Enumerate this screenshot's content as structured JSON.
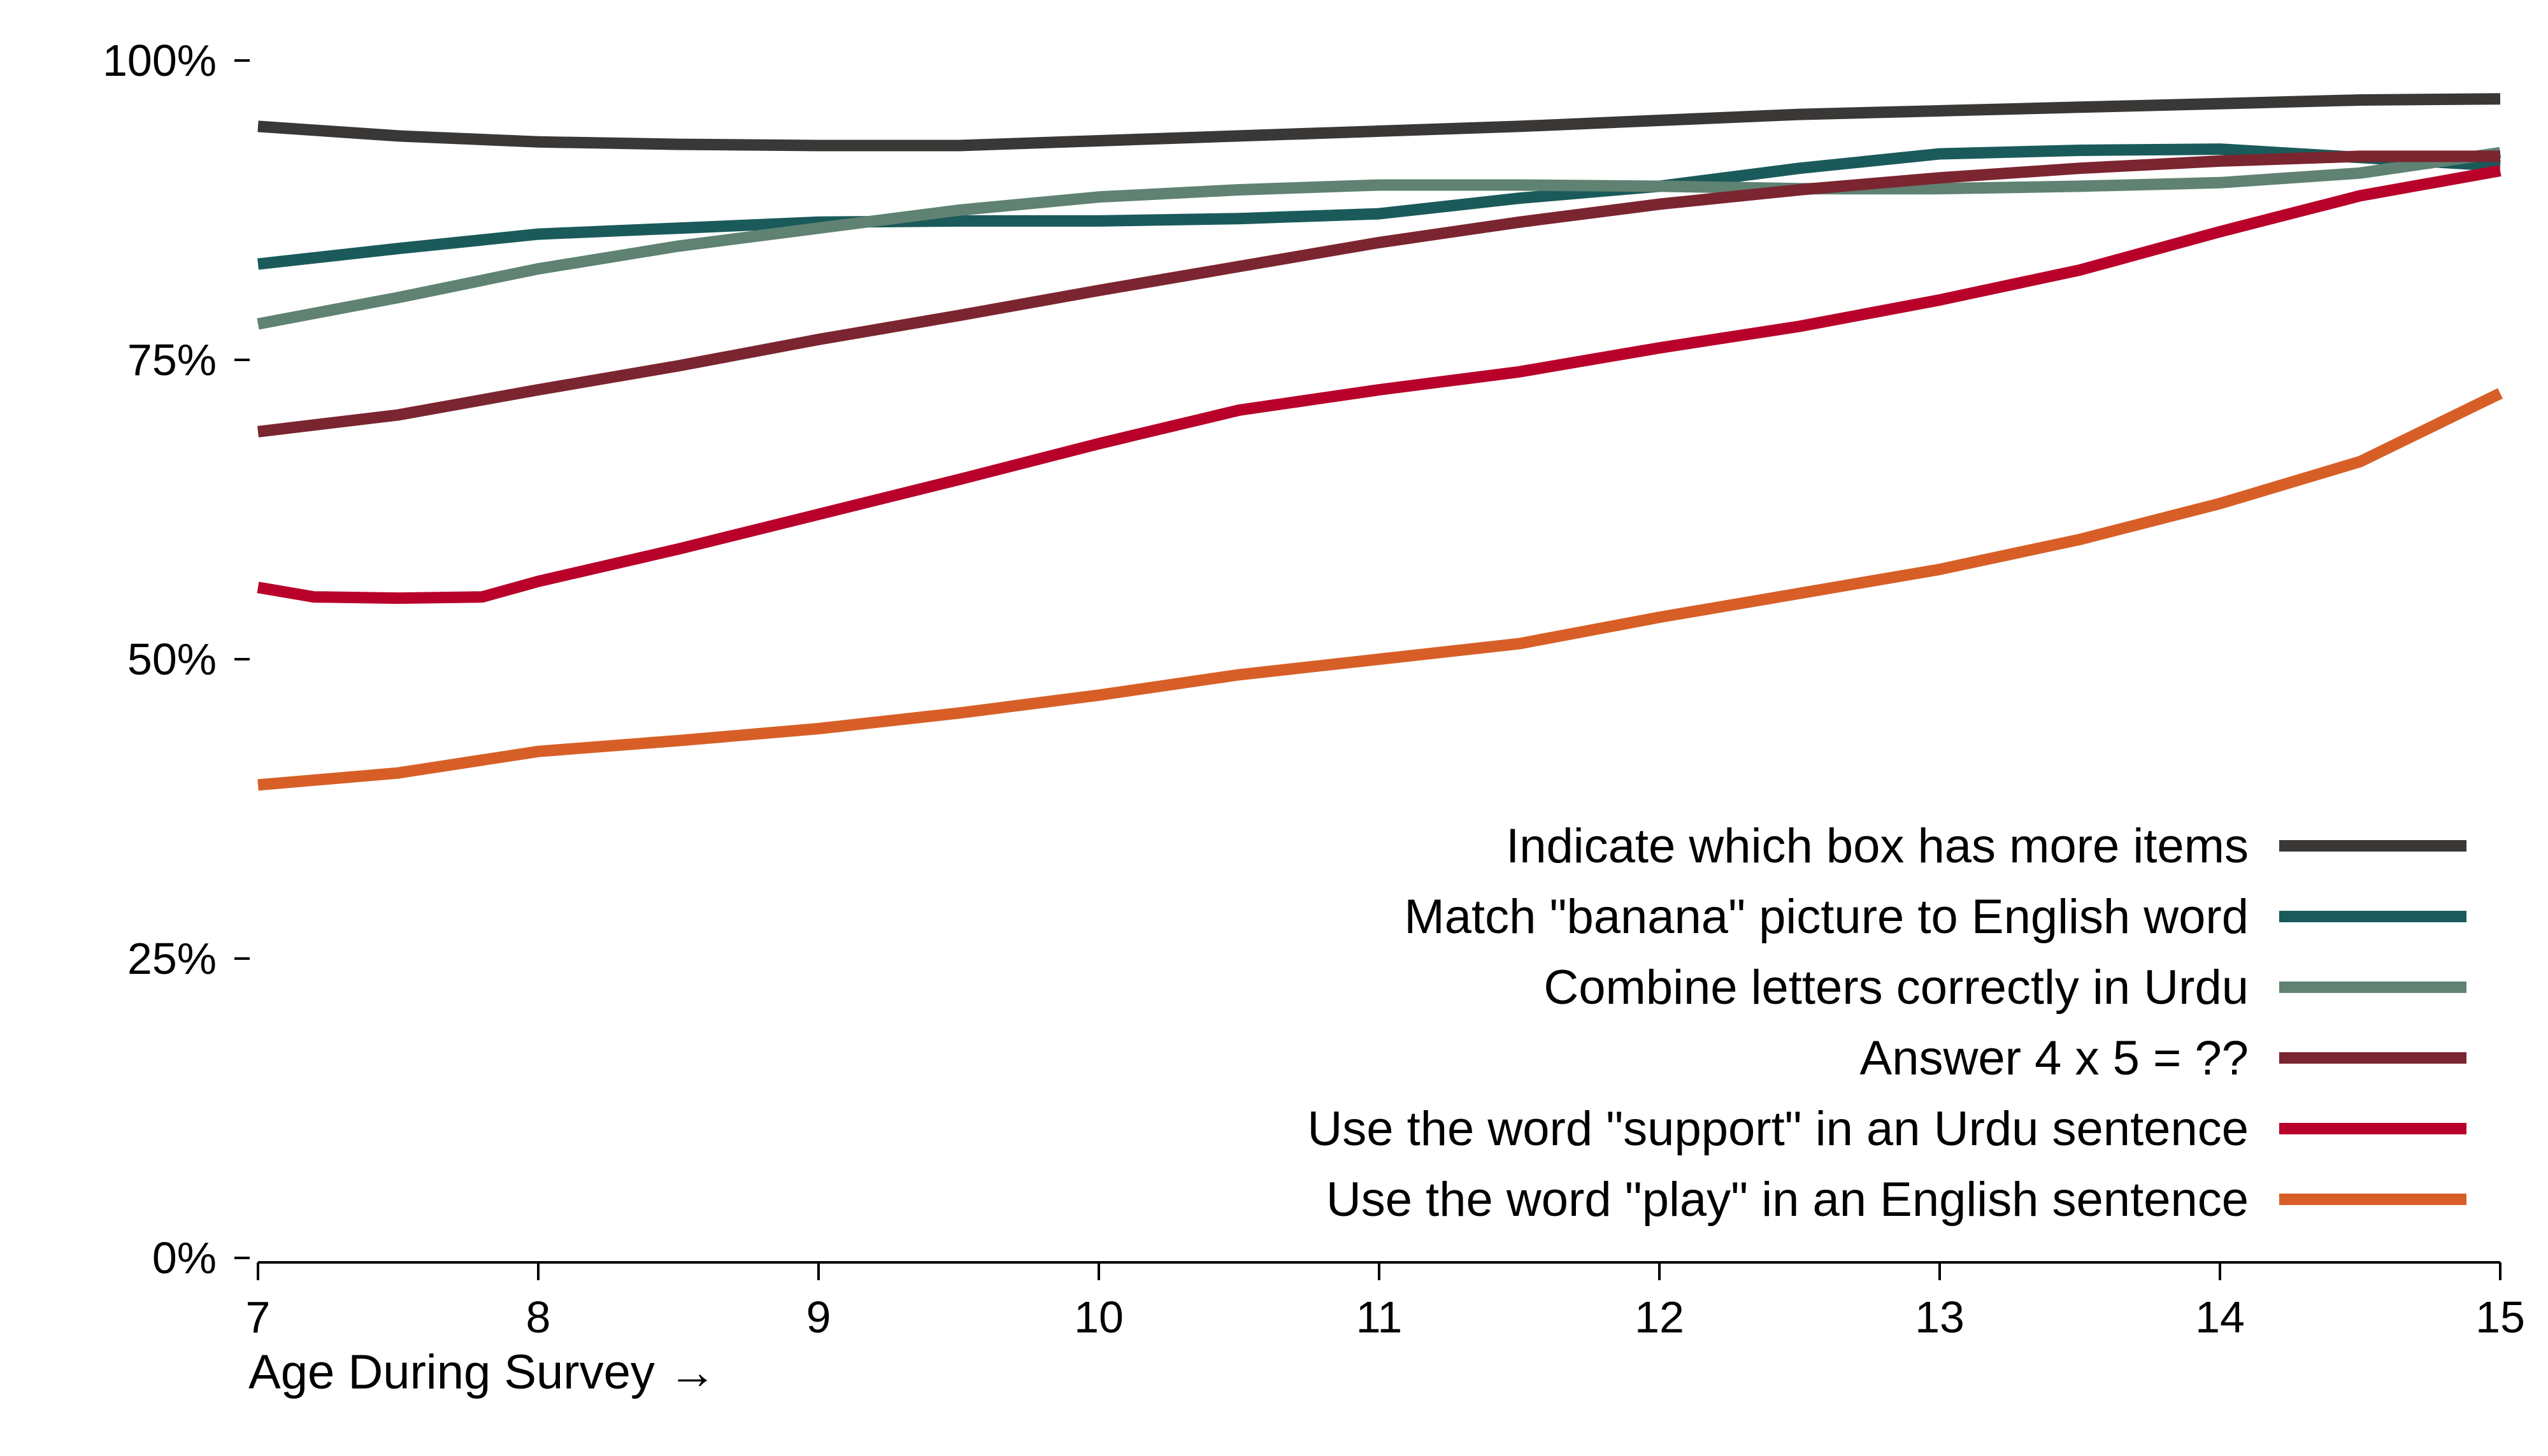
{
  "chart_data": {
    "type": "line",
    "title": "",
    "xlabel": "Age During Survey →",
    "ylabel": "",
    "xlim": [
      7,
      15
    ],
    "ylim": [
      0,
      1
    ],
    "x_ticks": [
      "7",
      "8",
      "9",
      "10",
      "11",
      "12",
      "13",
      "14",
      "15"
    ],
    "y_ticks": [
      "0%",
      "25%",
      "50%",
      "75%",
      "100%"
    ],
    "legend_position": "bottom-right",
    "grid": false,
    "series": [
      {
        "name": "Indicate which box has more items",
        "color": "#3a3836",
        "x": [
          7,
          7.5,
          8,
          8.5,
          9,
          9.5,
          10,
          10.5,
          11,
          11.5,
          12,
          12.5,
          13,
          13.5,
          14,
          14.5,
          15
        ],
        "y": [
          0.945,
          0.937,
          0.932,
          0.93,
          0.929,
          0.929,
          0.933,
          0.937,
          0.941,
          0.945,
          0.95,
          0.955,
          0.958,
          0.961,
          0.964,
          0.967,
          0.968
        ]
      },
      {
        "name": "Match \"banana\" picture to English word",
        "color": "#1b5a5a",
        "x": [
          7,
          7.5,
          8,
          8.5,
          9,
          9.5,
          10,
          10.5,
          11,
          11.5,
          12,
          12.5,
          13,
          13.5,
          14,
          14.5,
          15
        ],
        "y": [
          0.83,
          0.843,
          0.855,
          0.86,
          0.865,
          0.866,
          0.866,
          0.868,
          0.872,
          0.885,
          0.895,
          0.91,
          0.922,
          0.925,
          0.926,
          0.919,
          0.912
        ]
      },
      {
        "name": "Combine letters correctly in Urdu",
        "color": "#5f8272",
        "x": [
          7,
          7.5,
          8,
          8.5,
          9,
          9.5,
          10,
          10.5,
          11,
          11.5,
          12,
          12.5,
          13,
          13.5,
          14,
          14.5,
          15
        ],
        "y": [
          0.78,
          0.802,
          0.826,
          0.845,
          0.86,
          0.875,
          0.886,
          0.892,
          0.896,
          0.896,
          0.895,
          0.893,
          0.893,
          0.895,
          0.898,
          0.906,
          0.923
        ]
      },
      {
        "name": "Answer 4 x 5 = ??",
        "color": "#7b2530",
        "x": [
          7,
          7.5,
          8,
          8.5,
          9,
          9.5,
          10,
          10.5,
          11,
          11.5,
          12,
          12.5,
          13,
          13.5,
          14,
          14.5,
          15
        ],
        "y": [
          0.69,
          0.704,
          0.725,
          0.745,
          0.767,
          0.787,
          0.808,
          0.828,
          0.848,
          0.865,
          0.88,
          0.892,
          0.902,
          0.91,
          0.916,
          0.92,
          0.92
        ]
      },
      {
        "name": "Use the word \"support\" in an Urdu sentence",
        "color": "#b8002a",
        "x": [
          7,
          7.2,
          7.5,
          7.8,
          8,
          8.5,
          9,
          9.5,
          10,
          10.5,
          11,
          11.5,
          12,
          12.5,
          13,
          13.5,
          14,
          14.5,
          15
        ],
        "y": [
          0.56,
          0.552,
          0.551,
          0.552,
          0.565,
          0.592,
          0.621,
          0.65,
          0.68,
          0.708,
          0.725,
          0.74,
          0.76,
          0.778,
          0.8,
          0.825,
          0.857,
          0.887,
          0.908
        ]
      },
      {
        "name": "Use the word \"play\" in an English sentence",
        "color": "#d75f27",
        "x": [
          7,
          7.5,
          8,
          8.5,
          9,
          9.5,
          10,
          10.5,
          11,
          11.5,
          12,
          12.5,
          13,
          13.5,
          14,
          14.5,
          15
        ],
        "y": [
          0.395,
          0.405,
          0.423,
          0.432,
          0.442,
          0.455,
          0.47,
          0.487,
          0.5,
          0.513,
          0.535,
          0.555,
          0.575,
          0.6,
          0.63,
          0.665,
          0.722
        ]
      }
    ]
  }
}
